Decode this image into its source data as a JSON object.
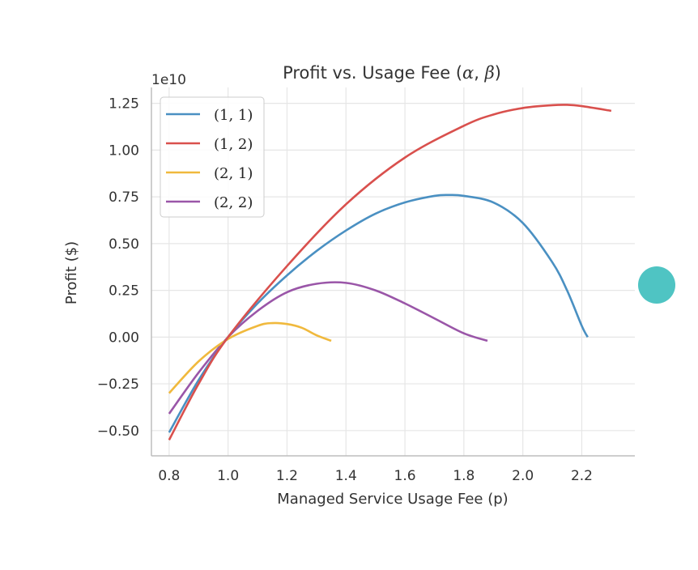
{
  "chart_data": {
    "type": "line",
    "title": "Profit vs. Usage Fee (α, β)",
    "title_plain": "Profit vs. Usage Fee (",
    "title_alpha": "α",
    "title_sep": ", ",
    "title_beta": "β",
    "title_close": ")",
    "xlabel": "Managed Service Usage Fee (p)",
    "ylabel": "Profit ($)",
    "y_scale_label": "1e10",
    "xlim": [
      0.74,
      2.38
    ],
    "ylim": [
      -0.635,
      1.335
    ],
    "xticks": [
      0.8,
      1.0,
      1.2,
      1.4,
      1.6,
      1.8,
      2.0,
      2.2
    ],
    "xtick_labels": [
      "0.8",
      "1.0",
      "1.2",
      "1.4",
      "1.6",
      "1.8",
      "2.0",
      "2.2"
    ],
    "yticks": [
      -0.5,
      -0.25,
      0.0,
      0.25,
      0.5,
      0.75,
      1.0,
      1.25
    ],
    "ytick_labels": [
      "−0.50",
      "−0.25",
      "0.00",
      "0.25",
      "0.50",
      "0.75",
      "1.00",
      "1.25"
    ],
    "grid": true,
    "legend_position": "top-left",
    "series": [
      {
        "name": "(1, 1)",
        "color": "#4a90c2",
        "x": [
          0.8,
          0.9,
          1.0,
          1.1,
          1.2,
          1.3,
          1.4,
          1.5,
          1.6,
          1.7,
          1.75,
          1.8,
          1.9,
          2.0,
          2.1,
          2.15,
          2.2,
          2.22
        ],
        "y": [
          -0.51,
          -0.23,
          0.0,
          0.18,
          0.33,
          0.46,
          0.57,
          0.66,
          0.72,
          0.755,
          0.76,
          0.755,
          0.72,
          0.61,
          0.4,
          0.25,
          0.06,
          0.0
        ]
      },
      {
        "name": "(1, 2)",
        "color": "#d9504d",
        "x": [
          0.8,
          0.9,
          1.0,
          1.2,
          1.4,
          1.6,
          1.8,
          1.9,
          2.0,
          2.1,
          2.15,
          2.2,
          2.3
        ],
        "y": [
          -0.55,
          -0.25,
          0.0,
          0.38,
          0.71,
          0.96,
          1.13,
          1.19,
          1.225,
          1.24,
          1.242,
          1.235,
          1.21
        ]
      },
      {
        "name": "(2, 1)",
        "color": "#f0b93d",
        "x": [
          0.8,
          0.9,
          1.0,
          1.1,
          1.15,
          1.2,
          1.25,
          1.3,
          1.35
        ],
        "y": [
          -0.3,
          -0.13,
          -0.01,
          0.06,
          0.075,
          0.07,
          0.05,
          0.01,
          -0.02
        ]
      },
      {
        "name": "(2, 2)",
        "color": "#9a56a8",
        "x": [
          0.8,
          0.9,
          1.0,
          1.1,
          1.2,
          1.3,
          1.4,
          1.5,
          1.6,
          1.7,
          1.8,
          1.88
        ],
        "y": [
          -0.41,
          -0.19,
          0.0,
          0.14,
          0.24,
          0.285,
          0.29,
          0.25,
          0.18,
          0.1,
          0.02,
          -0.02
        ]
      }
    ]
  }
}
